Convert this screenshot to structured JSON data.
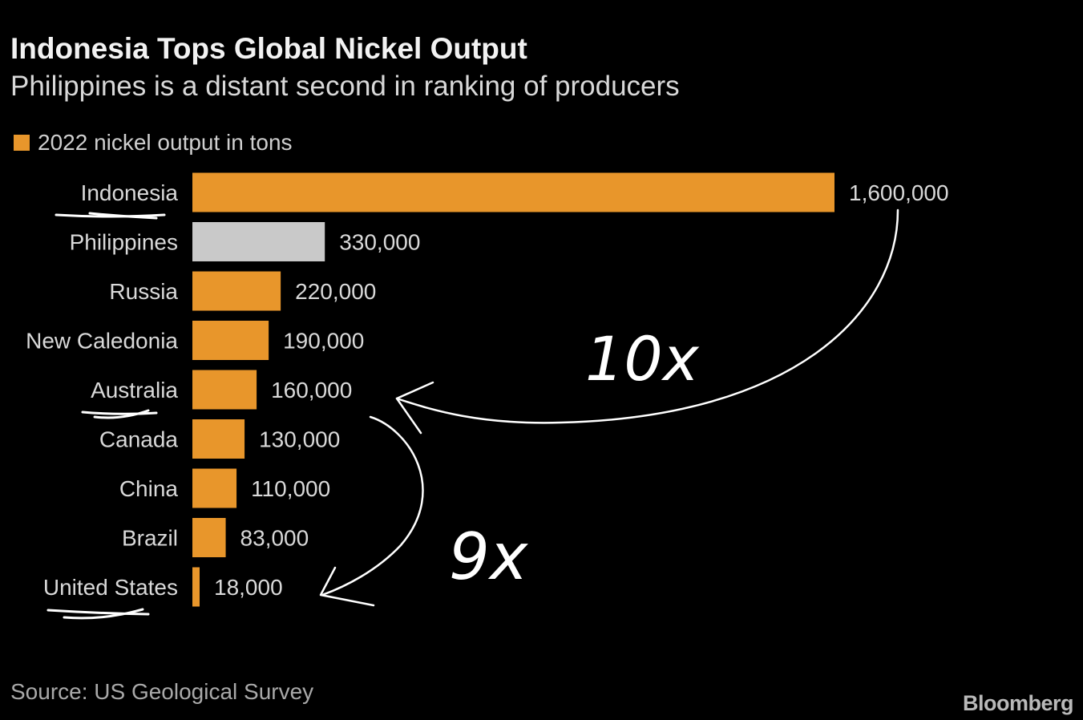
{
  "colors": {
    "background": "#000000",
    "accent": "#e8962b",
    "highlight": "#c9c9c9",
    "ink": "#ffffff"
  },
  "chart_data": {
    "type": "bar",
    "orientation": "horizontal",
    "title": "Indonesia Tops Global Nickel Output",
    "subtitle": "Philippines is a distant second in ranking of producers",
    "legend": "2022 nickel output in tons",
    "categories": [
      "Indonesia",
      "Philippines",
      "Russia",
      "New Caledonia",
      "Australia",
      "Canada",
      "China",
      "Brazil",
      "United States"
    ],
    "values": [
      1600000,
      330000,
      220000,
      190000,
      160000,
      130000,
      110000,
      83000,
      18000
    ],
    "value_labels": [
      "1,600,000",
      "330,000",
      "220,000",
      "190,000",
      "160,000",
      "130,000",
      "110,000",
      "83,000",
      "18,000"
    ],
    "highlighted_category": "Philippines",
    "xlim": [
      0,
      1600000
    ],
    "xlabel": "",
    "ylabel": "",
    "grid": false,
    "annotations": [
      {
        "text": "10x",
        "from": "Indonesia",
        "to": "Australia"
      },
      {
        "text": "9x",
        "from": "Australia",
        "to": "United States"
      }
    ],
    "underlined_categories": [
      "Indonesia",
      "Australia",
      "United States"
    ]
  },
  "source": "Source: US Geological Survey",
  "brand": "Bloomberg"
}
